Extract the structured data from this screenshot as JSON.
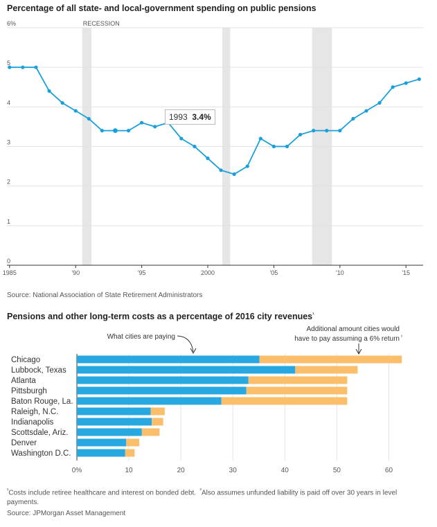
{
  "pensions_chart": {
    "title": "Percentage of all state- and local-government spending on public pensions",
    "recession_label": "RECESSION",
    "tooltip": {
      "year": "1993",
      "value": "3.4%"
    },
    "source": "Source: National Association of State Retirement Administrators"
  },
  "cities_chart": {
    "title": "Pensions and other long-term costs as a percentage of 2016 city revenues",
    "title_marker": "¹",
    "annotation_paying": "What cities are paying",
    "annotation_additional_1": "Additional amount cities would",
    "annotation_additional_2": "have to pay assuming a 6% return",
    "annotation_marker": "²",
    "footnote_1": "Costs include retiree healthcare and interest on bonded debt.",
    "footnote_2": "Also assumes unfunded liability is paid off over 30 years in level payments.",
    "source": "Source: JPMorgan Asset Management"
  },
  "colors": {
    "line": "#1a9fdb",
    "paying": "#28a8e0",
    "additional": "#fbbf6b",
    "recession": "#e6e6e6"
  },
  "chart_data": [
    {
      "type": "line",
      "title": "Percentage of all state- and local-government spending on public pensions",
      "x": [
        1985,
        1986,
        1987,
        1988,
        1989,
        1990,
        1991,
        1992,
        1993,
        1994,
        1995,
        1996,
        1997,
        1998,
        1999,
        2000,
        2001,
        2002,
        2003,
        2004,
        2005,
        2006,
        2007,
        2008,
        2009,
        2010,
        2011,
        2012,
        2013,
        2014,
        2015,
        2016
      ],
      "series": [
        {
          "values": [
            5.0,
            5.0,
            5.0,
            4.4,
            4.1,
            3.9,
            3.7,
            3.4,
            3.4,
            3.4,
            3.6,
            3.5,
            3.6,
            3.2,
            3.0,
            2.7,
            2.4,
            2.3,
            2.5,
            3.2,
            3.0,
            3.0,
            3.3,
            3.4,
            3.4,
            3.4,
            3.7,
            3.9,
            4.1,
            4.5,
            4.6,
            4.7
          ]
        }
      ],
      "recessions": [
        [
          1990.5,
          1991.2
        ],
        [
          2001.1,
          2001.7
        ],
        [
          2007.9,
          2009.4
        ]
      ],
      "ylim": [
        0,
        6
      ],
      "y_ticks": [
        0,
        1,
        2,
        3,
        4,
        5,
        6
      ],
      "y_tick_labels": [
        "0",
        "1",
        "2",
        "3",
        "4",
        "5",
        "6%"
      ],
      "x_ticks": [
        1985,
        1990,
        1995,
        2000,
        2005,
        2010,
        2015
      ],
      "x_tick_labels": [
        "1985",
        "'90",
        "'95",
        "2000",
        "'05",
        "'10",
        "'15"
      ],
      "xlim": [
        1984.8,
        2016.3
      ],
      "grid": true
    },
    {
      "type": "bar",
      "stacked": true,
      "orientation": "horizontal",
      "title": "Pensions and other long-term costs as a percentage of 2016 city revenues",
      "categories": [
        "Chicago",
        "Lubbock, Texas",
        "Atlanta",
        "Pittsburgh",
        "Baton Rouge, La.",
        "Raleigh, N.C.",
        "Indianapolis",
        "Scottsdale, Ariz.",
        "Denver",
        "Washington D.C."
      ],
      "series": [
        {
          "values": [
            35.1,
            42.0,
            33.0,
            32.6,
            27.8,
            14.2,
            14.4,
            12.5,
            9.5,
            9.3
          ]
        },
        {
          "values": [
            27.4,
            12.0,
            19.0,
            19.4,
            24.2,
            2.7,
            2.2,
            3.4,
            2.5,
            1.8
          ]
        }
      ],
      "xlim": [
        0,
        65
      ],
      "x_ticks": [
        0,
        10,
        20,
        30,
        40,
        50,
        60
      ],
      "x_tick_labels": [
        "0%",
        "10",
        "20",
        "30",
        "40",
        "50",
        "60"
      ],
      "grid": true
    }
  ]
}
